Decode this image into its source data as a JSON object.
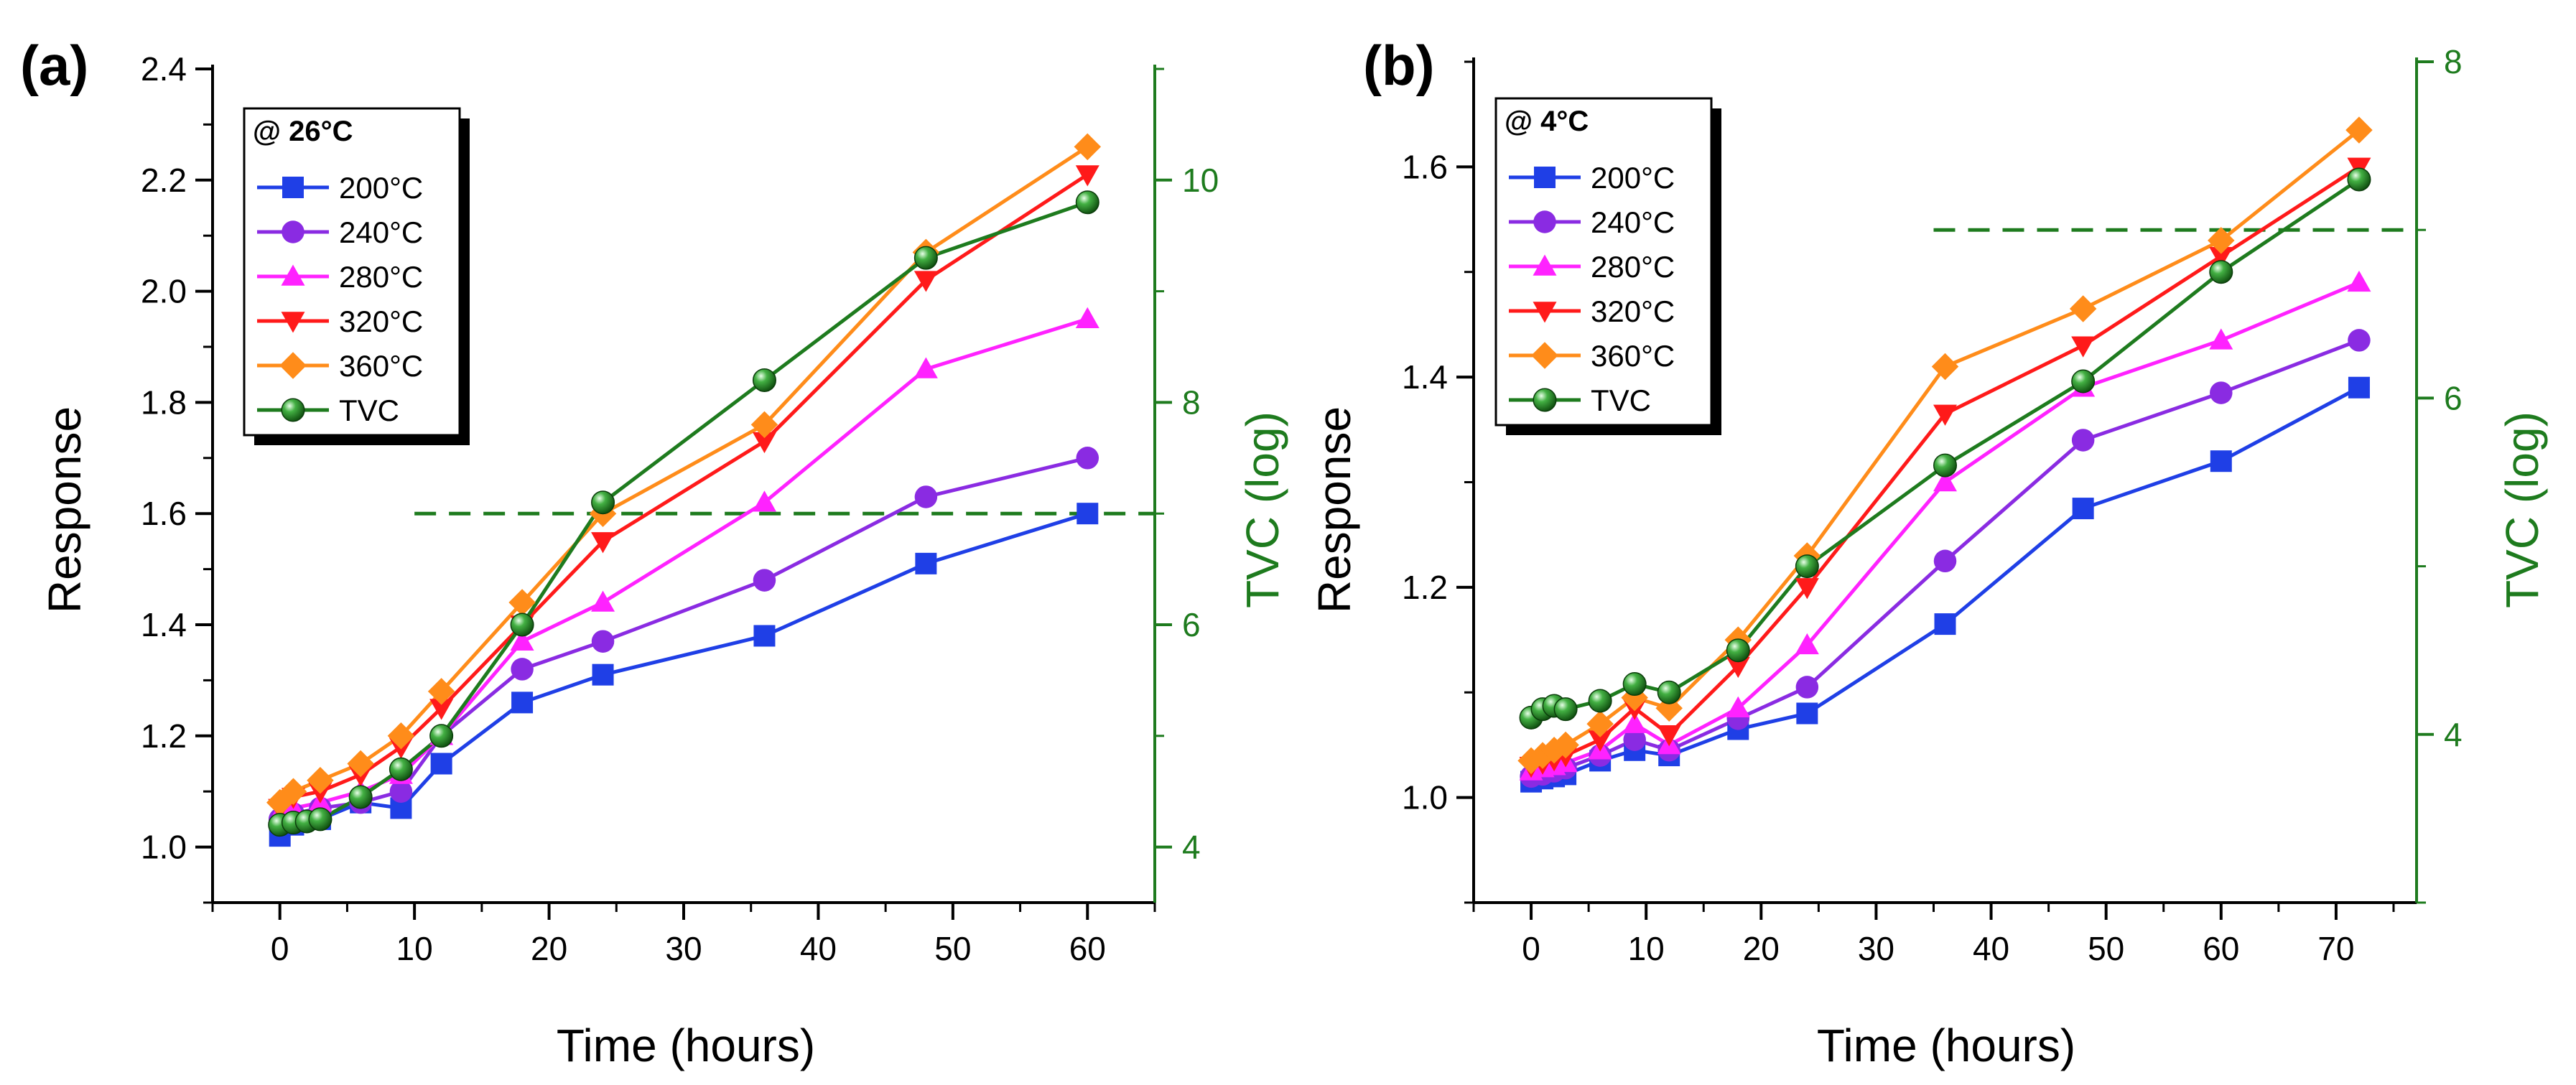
{
  "chart_data": [
    {
      "type": "line",
      "panel_label": "(a)",
      "xlabel": "Time (hours)",
      "ylabel": "Response",
      "y2label": "TVC (log)",
      "xlim": [
        -5,
        65
      ],
      "ylim": [
        0.9,
        2.4
      ],
      "y2lim": [
        3.5,
        11
      ],
      "xticks": [
        0,
        10,
        20,
        30,
        40,
        50,
        60
      ],
      "yticks": [
        1.0,
        1.2,
        1.4,
        1.6,
        1.8,
        2.0,
        2.2,
        2.4
      ],
      "y2ticks": [
        4,
        6,
        8,
        10
      ],
      "legend_title": "@ 26°C",
      "legend_position": "top-left",
      "threshold": {
        "axis": "y2",
        "value": 7,
        "x_from": 10,
        "x_to": 65,
        "color": "#1e7b1e"
      },
      "series": [
        {
          "name": "200°C",
          "color": "#1f3fe6",
          "marker": "square",
          "axis": "y",
          "x": [
            0,
            1,
            3,
            6,
            9,
            12,
            18,
            24,
            36,
            48,
            60
          ],
          "values": [
            1.02,
            1.04,
            1.05,
            1.08,
            1.07,
            1.15,
            1.26,
            1.31,
            1.38,
            1.51,
            1.6
          ]
        },
        {
          "name": "240°C",
          "color": "#8a2be2",
          "marker": "circle",
          "axis": "y",
          "x": [
            0,
            1,
            3,
            6,
            9,
            12,
            18,
            24,
            36,
            48,
            60
          ],
          "values": [
            1.05,
            1.06,
            1.07,
            1.08,
            1.1,
            1.2,
            1.32,
            1.37,
            1.48,
            1.63,
            1.7
          ]
        },
        {
          "name": "280°C",
          "color": "#ff22ff",
          "marker": "triangle-up",
          "axis": "y",
          "x": [
            0,
            1,
            3,
            6,
            9,
            12,
            18,
            24,
            36,
            48,
            60
          ],
          "values": [
            1.06,
            1.07,
            1.08,
            1.1,
            1.13,
            1.2,
            1.37,
            1.44,
            1.62,
            1.86,
            1.95
          ]
        },
        {
          "name": "320°C",
          "color": "#ff1a1a",
          "marker": "triangle-down",
          "axis": "y",
          "x": [
            0,
            1,
            3,
            6,
            9,
            12,
            18,
            24,
            36,
            48,
            60
          ],
          "values": [
            1.07,
            1.09,
            1.1,
            1.13,
            1.18,
            1.25,
            1.4,
            1.55,
            1.73,
            2.02,
            2.21
          ]
        },
        {
          "name": "360°C",
          "color": "#ff8c1a",
          "marker": "diamond",
          "axis": "y",
          "x": [
            0,
            1,
            3,
            6,
            9,
            12,
            18,
            24,
            36,
            48,
            60
          ],
          "values": [
            1.08,
            1.1,
            1.12,
            1.15,
            1.2,
            1.28,
            1.44,
            1.6,
            1.76,
            2.07,
            2.26
          ]
        },
        {
          "name": "TVC",
          "color": "#1e7b1e",
          "marker": "sphere",
          "axis": "y2",
          "x": [
            0,
            1,
            2,
            3,
            6,
            9,
            12,
            18,
            24,
            36,
            48,
            60
          ],
          "values": [
            4.2,
            4.22,
            4.23,
            4.25,
            4.45,
            4.7,
            5.0,
            6.0,
            7.1,
            8.2,
            9.3,
            9.8
          ]
        }
      ]
    },
    {
      "type": "line",
      "panel_label": "(b)",
      "xlabel": "Time (hours)",
      "ylabel": "Response",
      "y2label": "TVC (log)",
      "xlim": [
        -5,
        77
      ],
      "ylim": [
        0.9,
        1.7
      ],
      "y2lim": [
        3,
        8
      ],
      "xticks": [
        0,
        10,
        20,
        30,
        40,
        50,
        60,
        70
      ],
      "yticks": [
        1.0,
        1.2,
        1.4,
        1.6
      ],
      "y2ticks": [
        4,
        6,
        8
      ],
      "legend_title": "@ 4°C",
      "legend_position": "top-left",
      "threshold": {
        "axis": "y2",
        "value": 7,
        "x_from": 35,
        "x_to": 77,
        "color": "#1e7b1e"
      },
      "series": [
        {
          "name": "200°C",
          "color": "#1f3fe6",
          "marker": "square",
          "axis": "y",
          "x": [
            0,
            1,
            2,
            3,
            6,
            9,
            12,
            18,
            24,
            36,
            48,
            60,
            72
          ],
          "values": [
            1.015,
            1.018,
            1.02,
            1.022,
            1.035,
            1.045,
            1.04,
            1.065,
            1.08,
            1.165,
            1.275,
            1.32,
            1.39
          ]
        },
        {
          "name": "240°C",
          "color": "#8a2be2",
          "marker": "circle",
          "axis": "y",
          "x": [
            0,
            1,
            2,
            3,
            6,
            9,
            12,
            18,
            24,
            36,
            48,
            60,
            72
          ],
          "values": [
            1.02,
            1.022,
            1.025,
            1.028,
            1.04,
            1.055,
            1.045,
            1.075,
            1.105,
            1.225,
            1.34,
            1.385,
            1.435
          ]
        },
        {
          "name": "280°C",
          "color": "#ff22ff",
          "marker": "triangle-up",
          "axis": "y",
          "x": [
            0,
            1,
            2,
            3,
            6,
            9,
            12,
            18,
            24,
            36,
            48,
            60,
            72
          ],
          "values": [
            1.025,
            1.028,
            1.03,
            1.033,
            1.045,
            1.07,
            1.05,
            1.085,
            1.145,
            1.3,
            1.39,
            1.435,
            1.49
          ]
        },
        {
          "name": "320°C",
          "color": "#ff1a1a",
          "marker": "triangle-down",
          "axis": "y",
          "x": [
            0,
            1,
            2,
            3,
            6,
            9,
            12,
            18,
            24,
            36,
            48,
            60,
            72
          ],
          "values": [
            1.03,
            1.033,
            1.036,
            1.04,
            1.055,
            1.085,
            1.06,
            1.125,
            1.2,
            1.365,
            1.43,
            1.515,
            1.6
          ]
        },
        {
          "name": "360°C",
          "color": "#ff8c1a",
          "marker": "diamond",
          "axis": "y",
          "x": [
            0,
            1,
            2,
            3,
            6,
            9,
            12,
            18,
            24,
            36,
            48,
            60,
            72
          ],
          "values": [
            1.035,
            1.04,
            1.045,
            1.05,
            1.07,
            1.095,
            1.085,
            1.15,
            1.23,
            1.41,
            1.465,
            1.53,
            1.635
          ]
        },
        {
          "name": "TVC",
          "color": "#1e7b1e",
          "marker": "sphere",
          "axis": "y2",
          "x": [
            0,
            1,
            2,
            3,
            6,
            9,
            12,
            18,
            24,
            36,
            48,
            60,
            72
          ],
          "values": [
            4.1,
            4.15,
            4.17,
            4.15,
            4.2,
            4.3,
            4.25,
            4.5,
            5.0,
            5.6,
            6.1,
            6.75,
            7.3
          ]
        }
      ]
    }
  ]
}
